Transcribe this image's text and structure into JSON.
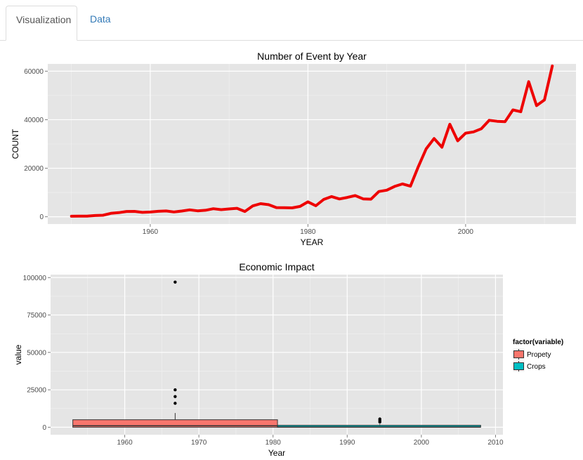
{
  "tabs": [
    {
      "label": "Visualization",
      "active": true
    },
    {
      "label": "Data",
      "active": false
    }
  ],
  "colors": {
    "panel_bg": "#e5e5e5",
    "grid_major": "#ffffff",
    "grid_minor": "#f2f2f2",
    "line": "#ee0000",
    "propety_fill": "#f8766d",
    "crops_fill": "#00bfc4",
    "tab_active_text": "#555555",
    "tab_link_text": "#337ab7"
  },
  "chart_data": [
    {
      "type": "line",
      "title": "Number of Event by Year",
      "xlabel": "YEAR",
      "ylabel": "COUNT",
      "xlim": [
        1947.0,
        2014.0
      ],
      "ylim": [
        -3000,
        63000
      ],
      "xticks": [
        1960,
        1980,
        2000
      ],
      "xtick_labels": [
        "1960",
        "1980",
        "2000"
      ],
      "yticks": [
        0,
        20000,
        40000,
        60000
      ],
      "ytick_labels": [
        "0",
        "20000",
        "40000",
        "60000"
      ],
      "grid": true,
      "x": [
        1950,
        1951,
        1952,
        1953,
        1954,
        1955,
        1956,
        1957,
        1958,
        1959,
        1960,
        1961,
        1962,
        1963,
        1964,
        1965,
        1966,
        1967,
        1968,
        1969,
        1970,
        1971,
        1972,
        1973,
        1974,
        1975,
        1976,
        1977,
        1978,
        1979,
        1980,
        1981,
        1982,
        1983,
        1984,
        1985,
        1986,
        1987,
        1988,
        1989,
        1990,
        1991,
        1992,
        1993,
        1994,
        1995,
        1996,
        1997,
        1998,
        1999,
        2000,
        2001,
        2002,
        2003,
        2004,
        2005,
        2006,
        2007,
        2008,
        2009,
        2010,
        2011
      ],
      "y": [
        223,
        269,
        272,
        492,
        609,
        1413,
        1703,
        2184,
        2213,
        1813,
        1945,
        2246,
        2389,
        1968,
        2348,
        2855,
        2455,
        2688,
        3312,
        2926,
        3215,
        3471,
        2168,
        4463,
        5386,
        4975,
        3768,
        3728,
        3657,
        4279,
        6146,
        4517,
        7132,
        8322,
        7335,
        7979,
        8726,
        7367,
        7257,
        10410,
        10946,
        12522,
        13534,
        12607,
        20631,
        27970,
        32270,
        28680,
        38128,
        31289,
        34471,
        34975,
        36293,
        39752,
        39363,
        39184,
        44034,
        43289,
        55663,
        45817,
        48161,
        62174
      ]
    },
    {
      "type": "box",
      "title": "Economic Impact",
      "xlabel": "Year",
      "ylabel": "value",
      "xlim": [
        1950.0,
        2011.0
      ],
      "ylim": [
        -5000,
        102000
      ],
      "xticks": [
        1960,
        1970,
        1980,
        1990,
        2000,
        2010
      ],
      "xtick_labels": [
        "1960",
        "1970",
        "1980",
        "1990",
        "2000",
        "2010"
      ],
      "yticks": [
        0,
        25000,
        50000,
        75000,
        100000
      ],
      "ytick_labels": [
        "0",
        "25000",
        "50000",
        "75000",
        "100000"
      ],
      "grid": true,
      "legend": {
        "title": "factor(variable)",
        "position": "right",
        "entries": [
          "Propety",
          "Crops"
        ]
      },
      "series": [
        {
          "name": "Propety",
          "x_center": 1966.8,
          "x_from": 1953.0,
          "x_to": 1980.6,
          "q1": 0,
          "median": 1000,
          "q3": 5000,
          "whisker_low": 0,
          "whisker_high": 9500,
          "outliers": [
            16000,
            20500,
            25000,
            97000
          ]
        },
        {
          "name": "Crops",
          "x_center": 1994.4,
          "x_from": 1980.6,
          "x_to": 2008.0,
          "q1": 0,
          "median": 200,
          "q3": 1300,
          "whisker_low": 0,
          "whisker_high": 2000,
          "outliers": [
            3500,
            4500,
            5500
          ]
        }
      ]
    }
  ]
}
